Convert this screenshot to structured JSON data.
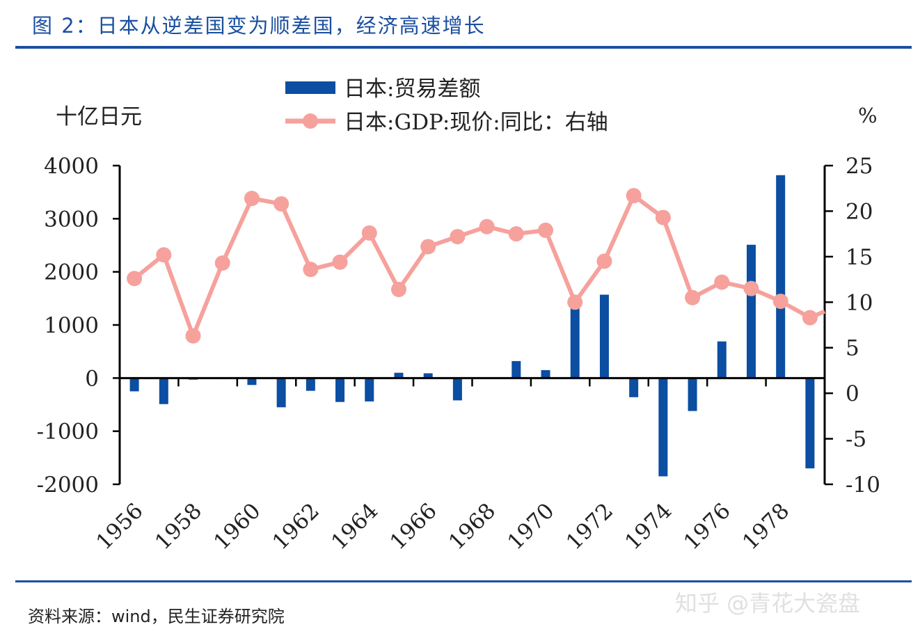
{
  "header": {
    "title": "图 2：日本从逆差国变为顺差国，经济高速增长"
  },
  "footer": {
    "source": "资料来源：wind，民生证券研究院",
    "watermark": "知乎 @青花大瓷盘"
  },
  "colors": {
    "title": "#1a4fa0",
    "bar": "#0b4ea2",
    "line": "#f6a19c"
  },
  "chart_data": {
    "type": "bar+line",
    "title": "",
    "ylabel_left": "十亿日元",
    "ylabel_right": "%",
    "ylim_left": [
      -2000,
      4000
    ],
    "ylim_right": [
      -10,
      25
    ],
    "yticks_left": [
      "4000",
      "3000",
      "2000",
      "1000",
      "0",
      "-1000",
      "-2000"
    ],
    "yticks_right": [
      "25",
      "20",
      "15",
      "10",
      "5",
      "0",
      "-5",
      "-10"
    ],
    "xtick_labels": [
      "1956",
      "1958",
      "1960",
      "1962",
      "1964",
      "1966",
      "1968",
      "1970",
      "1972",
      "1974",
      "1976",
      "1978"
    ],
    "legend_position": "top-center",
    "categories": [
      1956,
      1957,
      1958,
      1959,
      1960,
      1961,
      1962,
      1963,
      1964,
      1965,
      1966,
      1967,
      1968,
      1969,
      1970,
      1971,
      1972,
      1973,
      1974,
      1975,
      1976,
      1977,
      1978,
      1979
    ],
    "series": [
      {
        "name": "日本:贸易差额",
        "type": "bar",
        "axis": "left",
        "values": [
          -250,
          -490,
          -30,
          -20,
          -130,
          -550,
          -240,
          -450,
          -440,
          100,
          90,
          -420,
          0,
          320,
          150,
          1440,
          1570,
          -360,
          -1850,
          -620,
          690,
          2510,
          3820,
          -1700
        ]
      },
      {
        "name": "日本:GDP:现价:同比：右轴",
        "type": "line",
        "axis": "right",
        "values": [
          12.6,
          15.2,
          6.3,
          14.3,
          21.4,
          20.8,
          13.6,
          14.4,
          17.6,
          11.4,
          16.1,
          17.2,
          18.3,
          17.5,
          17.9,
          10.0,
          14.5,
          21.7,
          19.3,
          10.5,
          12.2,
          11.5,
          10.1,
          8.3
        ]
      }
    ]
  }
}
